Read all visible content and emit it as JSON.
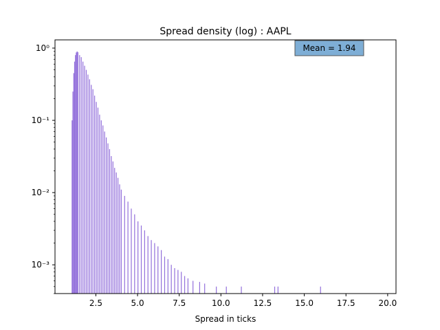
{
  "chart_data": {
    "type": "bar",
    "title": "Spread density (log) : AAPL",
    "xlabel": "Spread in ticks",
    "ylabel": "",
    "y_scale": "log",
    "xlim": [
      0.05,
      20.5
    ],
    "ylim": [
      0.0004,
      1.3
    ],
    "xticks": [
      2.5,
      5.0,
      7.5,
      10.0,
      12.5,
      15.0,
      17.5,
      20.0
    ],
    "xtick_labels": [
      "2.5",
      "5.0",
      "7.5",
      "10.0",
      "12.5",
      "15.0",
      "17.5",
      "20.0"
    ],
    "yticks": [
      0.001,
      0.01,
      0.1,
      1
    ],
    "ytick_labels": [
      "10⁻³",
      "10⁻²",
      "10⁻¹",
      "10⁰"
    ],
    "bar_color": "#9370DB",
    "annotation": {
      "text": "Mean = 1.94",
      "x": 16.5,
      "y": 1.0,
      "box_color": "#7EAED6"
    },
    "bins": {
      "x": [
        1.0,
        1.05,
        1.1,
        1.15,
        1.2,
        1.25,
        1.3,
        1.35,
        1.4,
        1.5,
        1.6,
        1.7,
        1.8,
        1.9,
        2.0,
        2.1,
        2.2,
        2.3,
        2.4,
        2.5,
        2.6,
        2.7,
        2.8,
        2.9,
        3.0,
        3.1,
        3.2,
        3.3,
        3.4,
        3.5,
        3.6,
        3.7,
        3.8,
        3.9,
        4.0,
        4.2,
        4.4,
        4.6,
        4.8,
        5.0,
        5.2,
        5.4,
        5.6,
        5.8,
        6.0,
        6.2,
        6.4,
        6.6,
        6.8,
        7.0,
        7.2,
        7.4,
        7.6,
        7.8,
        8.0,
        8.3,
        8.7,
        9.0,
        9.7,
        10.3,
        11.2,
        13.2,
        13.4,
        15.95
      ],
      "values": [
        0.0004,
        0.1,
        0.25,
        0.45,
        0.65,
        0.8,
        0.87,
        0.9,
        0.88,
        0.8,
        0.75,
        0.65,
        0.57,
        0.5,
        0.43,
        0.37,
        0.31,
        0.27,
        0.22,
        0.18,
        0.15,
        0.12,
        0.1,
        0.085,
        0.07,
        0.058,
        0.048,
        0.04,
        0.032,
        0.027,
        0.022,
        0.019,
        0.016,
        0.013,
        0.011,
        0.009,
        0.0075,
        0.006,
        0.005,
        0.004,
        0.0035,
        0.003,
        0.0025,
        0.0022,
        0.002,
        0.0018,
        0.0016,
        0.0013,
        0.0012,
        0.001,
        0.0009,
        0.00085,
        0.0008,
        0.0007,
        0.00065,
        0.0006,
        0.00058,
        0.00055,
        0.0005,
        0.0005,
        0.0005,
        0.0005,
        0.0005,
        0.0005
      ],
      "width": 0.05
    }
  }
}
